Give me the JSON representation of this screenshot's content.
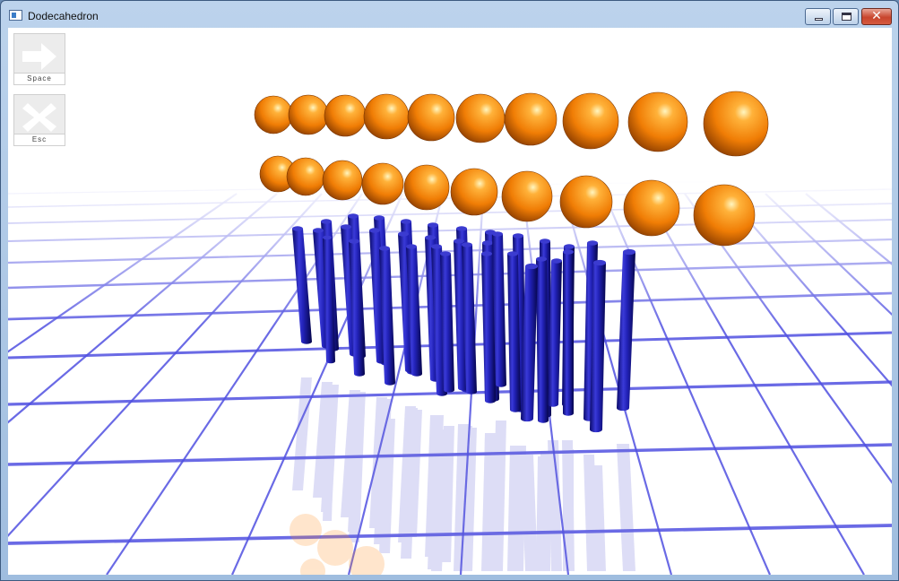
{
  "window": {
    "title": "Dodecahedron",
    "controls": {
      "minimize": "minimize",
      "maximize": "maximize",
      "close": "✕"
    }
  },
  "overlay": {
    "space_button": {
      "label": "Space",
      "icon": "arrow-right-icon"
    },
    "esc_button": {
      "label": "Esc",
      "icon": "x-icon"
    }
  },
  "scene": {
    "colors": {
      "background": "#ffffff",
      "grid": "#5050e0",
      "sphere": "#ff8c1a",
      "sphere_shade": "#a04a00",
      "cylinder": "#1a1aa6",
      "cylinder_shade": "#05055a"
    },
    "sphere_count": 20,
    "cylinder_count": 40
  }
}
